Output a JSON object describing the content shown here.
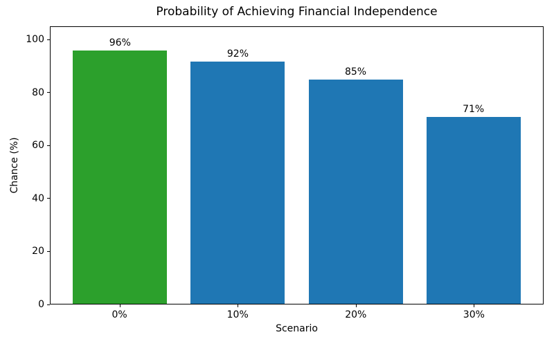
{
  "chart_data": {
    "type": "bar",
    "title": "Probability of Achieving Financial Independence",
    "xlabel": "Scenario",
    "ylabel": "Chance (%)",
    "categories": [
      "0%",
      "10%",
      "20%",
      "30%"
    ],
    "values": [
      96,
      92,
      85,
      71
    ],
    "bar_labels": [
      "96%",
      "92%",
      "85%",
      "71%"
    ],
    "bar_colors": [
      "#2ca02c",
      "#1f77b4",
      "#1f77b4",
      "#1f77b4"
    ],
    "ylim": [
      0,
      105
    ],
    "yticks": [
      0,
      20,
      40,
      60,
      80,
      100
    ],
    "grid": false,
    "legend_position": "none",
    "spine_color": "#000000",
    "background_color": "#ffffff"
  }
}
